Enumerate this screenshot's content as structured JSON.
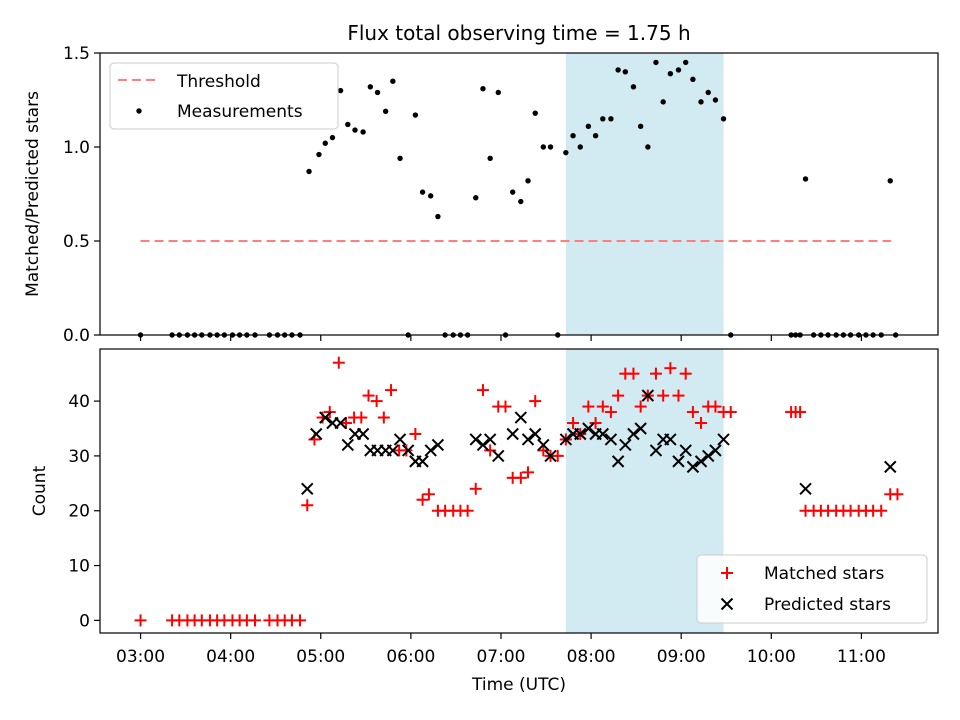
{
  "figure": {
    "title": "Flux total observing time = 1.75 h",
    "xlabel": "Time (UTC)",
    "xticks": [
      "03:00",
      "04:00",
      "05:00",
      "06:00",
      "07:00",
      "08:00",
      "09:00",
      "10:00",
      "11:00"
    ]
  },
  "colors": {
    "threshold": "#ff7f7f",
    "measurement": "#000000",
    "matched": "#ff0000",
    "predicted": "#000000",
    "shade": "#add8e6"
  },
  "chart_data": [
    {
      "type": "scatter",
      "panel": "top",
      "ylabel": "Matched/Predicted stars",
      "x_unit": "hour UTC",
      "ylim": [
        0,
        1.5
      ],
      "yticks": [
        "0.0",
        "0.5",
        "1.0",
        "1.5"
      ],
      "xlim": [
        2.55,
        11.85
      ],
      "shaded_interval": [
        7.72,
        9.47
      ],
      "legend_position": "upper-left",
      "threshold": {
        "name": "Threshold",
        "y": 0.5,
        "x_range": [
          3.0,
          11.33
        ]
      },
      "series": [
        {
          "name": "Measurements",
          "points": [
            [
              3.0,
              0
            ],
            [
              3.35,
              0
            ],
            [
              3.43,
              0
            ],
            [
              3.52,
              0
            ],
            [
              3.6,
              0
            ],
            [
              3.68,
              0
            ],
            [
              3.77,
              0
            ],
            [
              3.85,
              0
            ],
            [
              3.93,
              0
            ],
            [
              4.02,
              0
            ],
            [
              4.1,
              0
            ],
            [
              4.18,
              0
            ],
            [
              4.27,
              0
            ],
            [
              4.43,
              0
            ],
            [
              4.52,
              0
            ],
            [
              4.6,
              0
            ],
            [
              4.68,
              0
            ],
            [
              4.77,
              0
            ],
            [
              4.87,
              0.87
            ],
            [
              4.98,
              0.96
            ],
            [
              5.05,
              1.02
            ],
            [
              5.13,
              1.05
            ],
            [
              5.22,
              1.3
            ],
            [
              5.3,
              1.12
            ],
            [
              5.38,
              1.09
            ],
            [
              5.47,
              1.08
            ],
            [
              5.55,
              1.32
            ],
            [
              5.63,
              1.29
            ],
            [
              5.72,
              1.19
            ],
            [
              5.8,
              1.35
            ],
            [
              5.88,
              0.94
            ],
            [
              5.97,
              0
            ],
            [
              6.05,
              1.17
            ],
            [
              6.13,
              0.76
            ],
            [
              6.22,
              0.74
            ],
            [
              6.3,
              0.63
            ],
            [
              6.38,
              0
            ],
            [
              6.47,
              0
            ],
            [
              6.55,
              0
            ],
            [
              6.63,
              0
            ],
            [
              6.72,
              0.73
            ],
            [
              6.8,
              1.31
            ],
            [
              6.88,
              0.94
            ],
            [
              6.97,
              1.29
            ],
            [
              7.05,
              0
            ],
            [
              7.13,
              0.76
            ],
            [
              7.22,
              0.71
            ],
            [
              7.3,
              0.82
            ],
            [
              7.38,
              1.18
            ],
            [
              7.47,
              1.0
            ],
            [
              7.55,
              1.0
            ],
            [
              7.63,
              0
            ],
            [
              7.72,
              0.97
            ],
            [
              7.8,
              1.06
            ],
            [
              7.88,
              1.0
            ],
            [
              7.97,
              1.11
            ],
            [
              8.05,
              1.06
            ],
            [
              8.13,
              1.15
            ],
            [
              8.22,
              1.15
            ],
            [
              8.3,
              1.41
            ],
            [
              8.38,
              1.4
            ],
            [
              8.47,
              1.32
            ],
            [
              8.55,
              1.11
            ],
            [
              8.63,
              1.0
            ],
            [
              8.72,
              1.45
            ],
            [
              8.8,
              1.24
            ],
            [
              8.88,
              1.39
            ],
            [
              8.97,
              1.41
            ],
            [
              9.05,
              1.45
            ],
            [
              9.13,
              1.36
            ],
            [
              9.22,
              1.24
            ],
            [
              9.3,
              1.29
            ],
            [
              9.38,
              1.25
            ],
            [
              9.47,
              1.15
            ],
            [
              9.55,
              0
            ],
            [
              10.22,
              0
            ],
            [
              10.27,
              0
            ],
            [
              10.32,
              0
            ],
            [
              10.38,
              0.83
            ],
            [
              10.47,
              0
            ],
            [
              10.55,
              0
            ],
            [
              10.63,
              0
            ],
            [
              10.72,
              0
            ],
            [
              10.8,
              0
            ],
            [
              10.88,
              0
            ],
            [
              10.97,
              0
            ],
            [
              11.05,
              0
            ],
            [
              11.13,
              0
            ],
            [
              11.22,
              0
            ],
            [
              11.32,
              0.82
            ],
            [
              11.38,
              0
            ]
          ]
        }
      ]
    },
    {
      "type": "scatter",
      "panel": "bottom",
      "ylabel": "Count",
      "x_unit": "hour UTC",
      "ylim": [
        -2.3,
        49.5
      ],
      "yticks": [
        "0",
        "10",
        "20",
        "30",
        "40"
      ],
      "xlim": [
        2.55,
        11.85
      ],
      "shaded_interval": [
        7.72,
        9.47
      ],
      "legend_position": "lower-right",
      "series": [
        {
          "name": "Matched stars",
          "marker": "plus",
          "points": [
            [
              3.0,
              0
            ],
            [
              3.35,
              0
            ],
            [
              3.43,
              0
            ],
            [
              3.52,
              0
            ],
            [
              3.6,
              0
            ],
            [
              3.68,
              0
            ],
            [
              3.77,
              0
            ],
            [
              3.85,
              0
            ],
            [
              3.93,
              0
            ],
            [
              4.02,
              0
            ],
            [
              4.1,
              0
            ],
            [
              4.18,
              0
            ],
            [
              4.27,
              0
            ],
            [
              4.43,
              0
            ],
            [
              4.52,
              0
            ],
            [
              4.6,
              0
            ],
            [
              4.68,
              0
            ],
            [
              4.77,
              0
            ],
            [
              4.85,
              21
            ],
            [
              4.93,
              33
            ],
            [
              5.02,
              37
            ],
            [
              5.1,
              38
            ],
            [
              5.2,
              47
            ],
            [
              5.28,
              36
            ],
            [
              5.37,
              37
            ],
            [
              5.45,
              37
            ],
            [
              5.53,
              41
            ],
            [
              5.62,
              40
            ],
            [
              5.7,
              37
            ],
            [
              5.78,
              42
            ],
            [
              5.87,
              31
            ],
            [
              5.95,
              31
            ],
            [
              6.05,
              34
            ],
            [
              6.13,
              22
            ],
            [
              6.2,
              23
            ],
            [
              6.3,
              20
            ],
            [
              6.38,
              20
            ],
            [
              6.47,
              20
            ],
            [
              6.55,
              20
            ],
            [
              6.63,
              20
            ],
            [
              6.72,
              24
            ],
            [
              6.8,
              42
            ],
            [
              6.88,
              31
            ],
            [
              6.97,
              39
            ],
            [
              7.05,
              39
            ],
            [
              7.13,
              26
            ],
            [
              7.22,
              26
            ],
            [
              7.3,
              27
            ],
            [
              7.38,
              40
            ],
            [
              7.47,
              31
            ],
            [
              7.55,
              30
            ],
            [
              7.63,
              30
            ],
            [
              7.72,
              33
            ],
            [
              7.8,
              36
            ],
            [
              7.88,
              34
            ],
            [
              7.97,
              39
            ],
            [
              8.05,
              36
            ],
            [
              8.13,
              39
            ],
            [
              8.22,
              38
            ],
            [
              8.3,
              41
            ],
            [
              8.38,
              45
            ],
            [
              8.47,
              45
            ],
            [
              8.55,
              39
            ],
            [
              8.63,
              41
            ],
            [
              8.72,
              45
            ],
            [
              8.8,
              41
            ],
            [
              8.88,
              46
            ],
            [
              8.97,
              41
            ],
            [
              9.05,
              45
            ],
            [
              9.13,
              38
            ],
            [
              9.22,
              36
            ],
            [
              9.3,
              39
            ],
            [
              9.38,
              39
            ],
            [
              9.47,
              38
            ],
            [
              9.55,
              38
            ],
            [
              10.22,
              38
            ],
            [
              10.27,
              38
            ],
            [
              10.32,
              38
            ],
            [
              10.38,
              20
            ],
            [
              10.47,
              20
            ],
            [
              10.55,
              20
            ],
            [
              10.63,
              20
            ],
            [
              10.72,
              20
            ],
            [
              10.8,
              20
            ],
            [
              10.88,
              20
            ],
            [
              10.97,
              20
            ],
            [
              11.05,
              20
            ],
            [
              11.13,
              20
            ],
            [
              11.22,
              20
            ],
            [
              11.32,
              23
            ],
            [
              11.4,
              23
            ]
          ]
        },
        {
          "name": "Predicted stars",
          "marker": "x",
          "points": [
            [
              4.85,
              24
            ],
            [
              4.95,
              34
            ],
            [
              5.05,
              37
            ],
            [
              5.13,
              36
            ],
            [
              5.22,
              36
            ],
            [
              5.3,
              32
            ],
            [
              5.38,
              34
            ],
            [
              5.47,
              34
            ],
            [
              5.55,
              31
            ],
            [
              5.63,
              31
            ],
            [
              5.72,
              31
            ],
            [
              5.8,
              31
            ],
            [
              5.88,
              33
            ],
            [
              5.97,
              31
            ],
            [
              6.05,
              29
            ],
            [
              6.13,
              29
            ],
            [
              6.22,
              31
            ],
            [
              6.3,
              32
            ],
            [
              6.72,
              33
            ],
            [
              6.8,
              32
            ],
            [
              6.88,
              33
            ],
            [
              6.97,
              30
            ],
            [
              7.13,
              34
            ],
            [
              7.22,
              37
            ],
            [
              7.3,
              33
            ],
            [
              7.38,
              34
            ],
            [
              7.47,
              32
            ],
            [
              7.55,
              30
            ],
            [
              7.72,
              33
            ],
            [
              7.8,
              34
            ],
            [
              7.88,
              34
            ],
            [
              7.97,
              35
            ],
            [
              8.05,
              34
            ],
            [
              8.13,
              34
            ],
            [
              8.22,
              33
            ],
            [
              8.3,
              29
            ],
            [
              8.38,
              32
            ],
            [
              8.47,
              34
            ],
            [
              8.55,
              35
            ],
            [
              8.63,
              41
            ],
            [
              8.72,
              31
            ],
            [
              8.8,
              33
            ],
            [
              8.88,
              33
            ],
            [
              8.97,
              29
            ],
            [
              9.05,
              31
            ],
            [
              9.13,
              28
            ],
            [
              9.22,
              29
            ],
            [
              9.3,
              30
            ],
            [
              9.38,
              31
            ],
            [
              9.47,
              33
            ],
            [
              10.38,
              24
            ],
            [
              11.32,
              28
            ]
          ]
        }
      ]
    }
  ]
}
